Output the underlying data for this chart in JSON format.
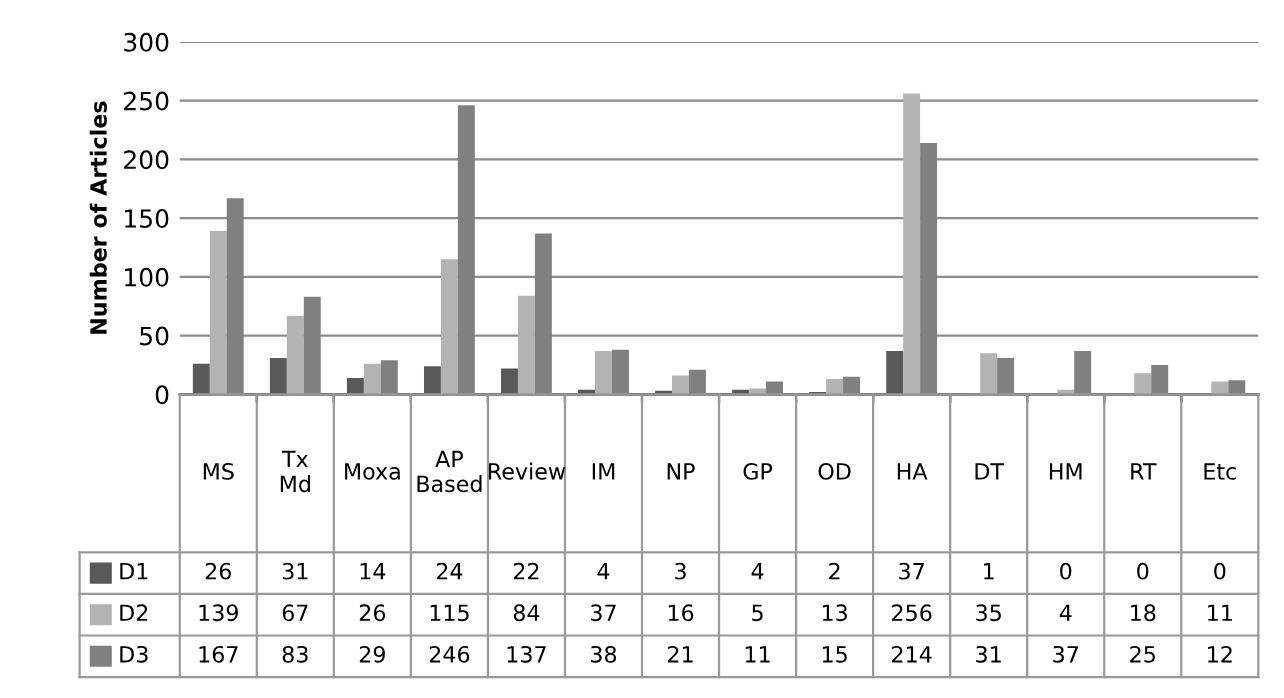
{
  "chart_data": {
    "type": "bar",
    "ylabel": "Number of Articles",
    "categories": [
      "MS",
      "Tx Md",
      "Moxa",
      "AP Based",
      "Review",
      "IM",
      "NP",
      "GP",
      "OD",
      "HA",
      "DT",
      "HM",
      "RT",
      "Etc"
    ],
    "series": [
      {
        "name": "D1",
        "color": "#595959",
        "values": [
          26,
          31,
          14,
          24,
          22,
          4,
          3,
          4,
          2,
          37,
          1,
          0,
          0,
          0
        ]
      },
      {
        "name": "D2",
        "color": "#b3b3b3",
        "values": [
          139,
          67,
          26,
          115,
          84,
          37,
          16,
          5,
          13,
          256,
          35,
          4,
          18,
          11
        ]
      },
      {
        "name": "D3",
        "color": "#808080",
        "values": [
          167,
          83,
          29,
          246,
          137,
          38,
          21,
          11,
          15,
          214,
          31,
          37,
          25,
          12
        ]
      }
    ],
    "ylim": [
      0,
      300
    ],
    "yticks": [
      0,
      50,
      100,
      150,
      200,
      250,
      300
    ],
    "grid": "y",
    "legend": "bottom left",
    "data_labels": true
  }
}
